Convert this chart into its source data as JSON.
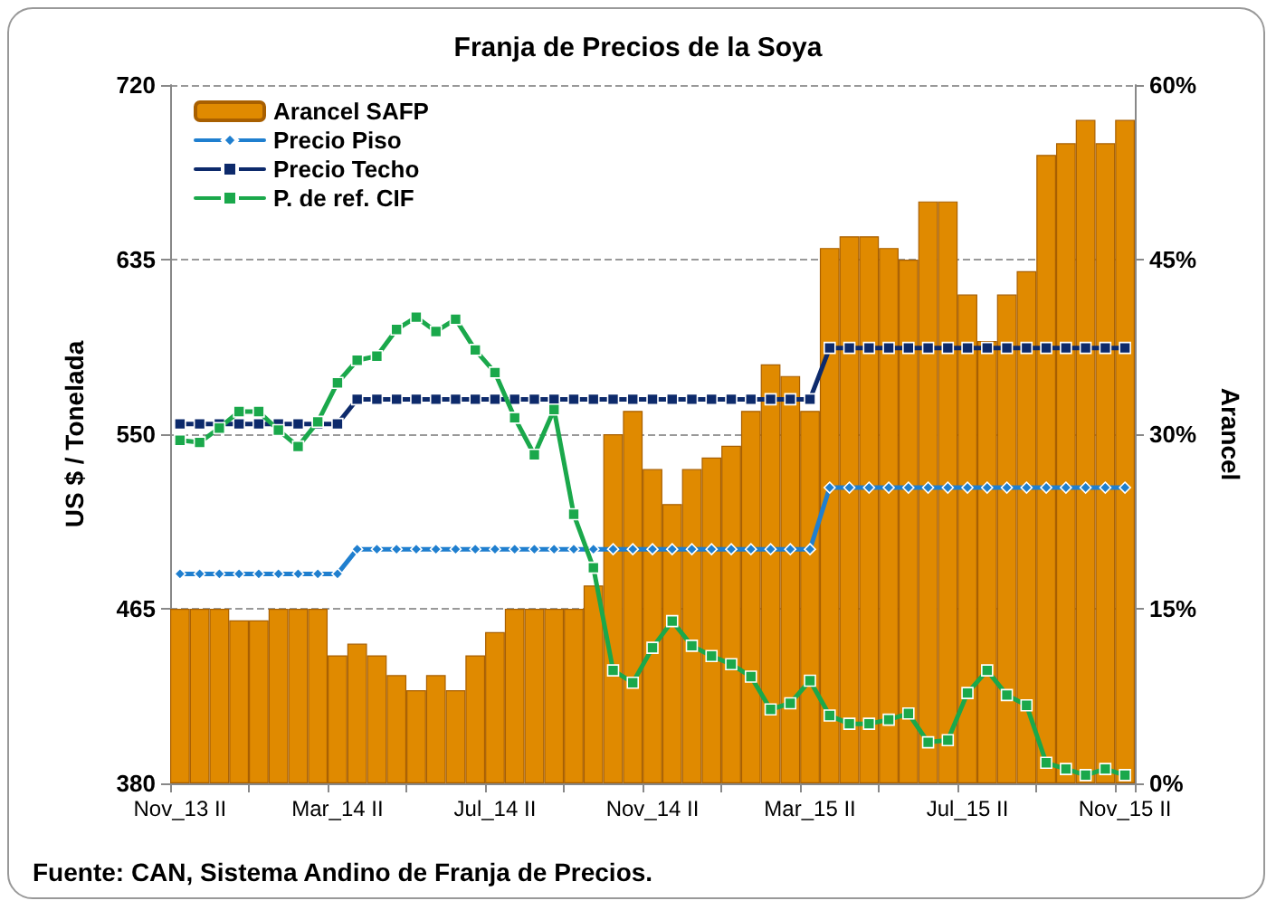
{
  "chart_data": {
    "type": "bar",
    "title": "Franja de Precios de la Soya",
    "ylabel": "US $ / Tonelada",
    "y2label": "Arancel",
    "annotations": [
      "Fuente: CAN, Sistema Andino de Franja de Precios."
    ],
    "categories": [
      "Nov_13 II",
      null,
      null,
      null,
      null,
      null,
      null,
      null,
      "Mar_14 II",
      null,
      null,
      null,
      null,
      null,
      null,
      null,
      "Jul_14 II",
      null,
      null,
      null,
      null,
      null,
      null,
      null,
      "Nov_14 II",
      null,
      null,
      null,
      null,
      null,
      null,
      null,
      "Mar_15 II",
      null,
      null,
      null,
      null,
      null,
      null,
      null,
      "Jul_15 II",
      null,
      null,
      null,
      null,
      null,
      null,
      null,
      "Nov_15 II"
    ],
    "series": [
      {
        "name": "Arancel SAFP",
        "axis": "y2",
        "color": "#e08a00",
        "values": [
          15,
          15,
          15,
          14,
          14,
          15,
          15,
          15,
          11,
          12,
          11,
          9.3,
          8,
          9.3,
          8,
          11,
          13,
          15,
          15,
          15,
          15,
          17,
          30,
          32,
          27,
          24,
          27,
          28,
          29,
          32,
          36,
          35,
          32,
          46,
          47,
          47,
          46,
          45,
          50,
          50,
          42,
          38,
          42,
          44,
          54,
          55,
          57,
          55,
          57
        ]
      },
      {
        "name": "Precio Piso",
        "type": "line",
        "marker": "diamond",
        "color": "#1f7fcf",
        "values": [
          482,
          482,
          482,
          482,
          482,
          482,
          482,
          482,
          482,
          494,
          494,
          494,
          494,
          494,
          494,
          494,
          494,
          494,
          494,
          494,
          494,
          494,
          494,
          494,
          494,
          494,
          494,
          494,
          494,
          494,
          494,
          494,
          494,
          524,
          524,
          524,
          524,
          524,
          524,
          524,
          524,
          524,
          524,
          524,
          524,
          524,
          524,
          524,
          524
        ]
      },
      {
        "name": "Precio Techo",
        "type": "line",
        "marker": "square",
        "color": "#0d2a6b",
        "values": [
          555,
          555,
          555,
          555,
          555,
          555,
          555,
          555,
          555,
          567,
          567,
          567,
          567,
          567,
          567,
          567,
          567,
          567,
          567,
          567,
          567,
          567,
          567,
          567,
          567,
          567,
          567,
          567,
          567,
          567,
          567,
          567,
          567,
          592,
          592,
          592,
          592,
          592,
          592,
          592,
          592,
          592,
          592,
          592,
          592,
          592,
          592,
          592,
          592
        ]
      },
      {
        "name": "P. de ref. CIF",
        "type": "line",
        "marker": "square",
        "color": "#1aa84b",
        "values": [
          547,
          546,
          553,
          561,
          561,
          552,
          544,
          556,
          575,
          586,
          588,
          601,
          607,
          600,
          606,
          591,
          580,
          558,
          540,
          562,
          511,
          485,
          435,
          429,
          446,
          459,
          447,
          442,
          438,
          432,
          416,
          419,
          430,
          413,
          409,
          409,
          411,
          414,
          400,
          401,
          424,
          435,
          423,
          418,
          390,
          387,
          384,
          387,
          384
        ]
      }
    ],
    "ylim": [
      380,
      720
    ],
    "yticks": [
      380,
      465,
      550,
      635,
      720
    ],
    "y2lim": [
      0,
      60
    ],
    "y2ticks": [
      {
        "value": 0,
        "label": "0%"
      },
      {
        "value": 15,
        "label": "15%"
      },
      {
        "value": 30,
        "label": "30%"
      },
      {
        "value": 45,
        "label": "45%"
      },
      {
        "value": 60,
        "label": "60%"
      }
    ],
    "grid": "y",
    "legend": "top left"
  }
}
